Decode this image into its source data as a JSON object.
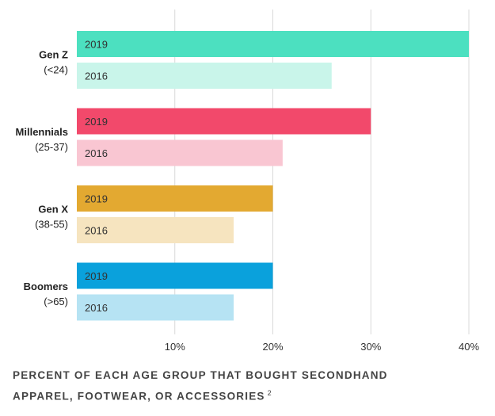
{
  "chart_data": {
    "type": "bar",
    "orientation": "horizontal",
    "title_line1": "PERCENT OF EACH AGE GROUP THAT BOUGHT SECONDHAND",
    "title_line2": "APPAREL, FOOTWEAR, OR ACCESSORIES",
    "footnote": "2",
    "xlim": [
      0,
      40
    ],
    "x_ticks": [
      "10%",
      "20%",
      "30%",
      "40%"
    ],
    "x_tick_values": [
      10,
      20,
      30,
      40
    ],
    "grid": true,
    "series_labels": [
      "2019",
      "2016"
    ],
    "groups": [
      {
        "name": "Gen Z",
        "range": "(<24)",
        "values": [
          40,
          26
        ],
        "colors": [
          "#4ce0c0",
          "#c9f5ea"
        ]
      },
      {
        "name": "Millennials",
        "range": "(25-37)",
        "values": [
          30,
          21
        ],
        "colors": [
          "#f2496b",
          "#f9c6d2"
        ]
      },
      {
        "name": "Gen X",
        "range": "(38-55)",
        "values": [
          20,
          16
        ],
        "colors": [
          "#e3a931",
          "#f6e4bf"
        ]
      },
      {
        "name": "Boomers",
        "range": "(>65)",
        "values": [
          20,
          16
        ],
        "colors": [
          "#0aa1dc",
          "#b6e3f3"
        ]
      }
    ]
  }
}
